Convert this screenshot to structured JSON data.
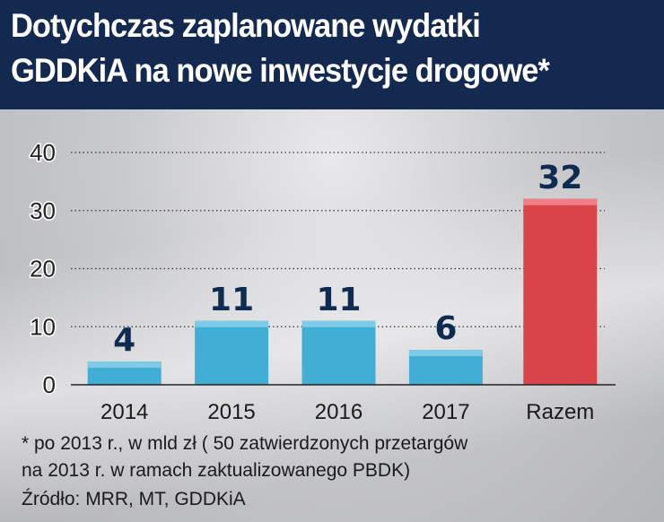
{
  "header": {
    "title_line1": "Dotychczas zaplanowane wydatki",
    "title_line2": "GDDKiA na nowe inwestycje drogowe*"
  },
  "chart_data": {
    "type": "bar",
    "title": "Dotychczas zaplanowane wydatki GDDKiA na nowe inwestycje drogowe*",
    "categories": [
      "2014",
      "2015",
      "2016",
      "2017",
      "Razem"
    ],
    "values": [
      4,
      11,
      11,
      6,
      32
    ],
    "value_labels": [
      "4",
      "11",
      "11",
      "6",
      "32"
    ],
    "colors": [
      "#43aed3",
      "#43aed3",
      "#43aed3",
      "#43aed3",
      "#d9444a"
    ],
    "highlight_colors": [
      "#7dcbe6",
      "#7dcbe6",
      "#7dcbe6",
      "#7dcbe6",
      "#ef7f84"
    ],
    "label_color": "#0f2b4f",
    "ylim": [
      0,
      40
    ],
    "yticks": [
      "0",
      "10",
      "20",
      "30",
      "40"
    ],
    "grid": true,
    "xlabel": "",
    "ylabel": ""
  },
  "footer": {
    "note_line1": "* po 2013 r., w mld zł ( 50 zatwierdzonych przetargów",
    "note_line2": "na 2013 r. w ramach zaktualizowanego PBDK)",
    "source": "Źródło: MRR, MT, GDDKiA"
  }
}
